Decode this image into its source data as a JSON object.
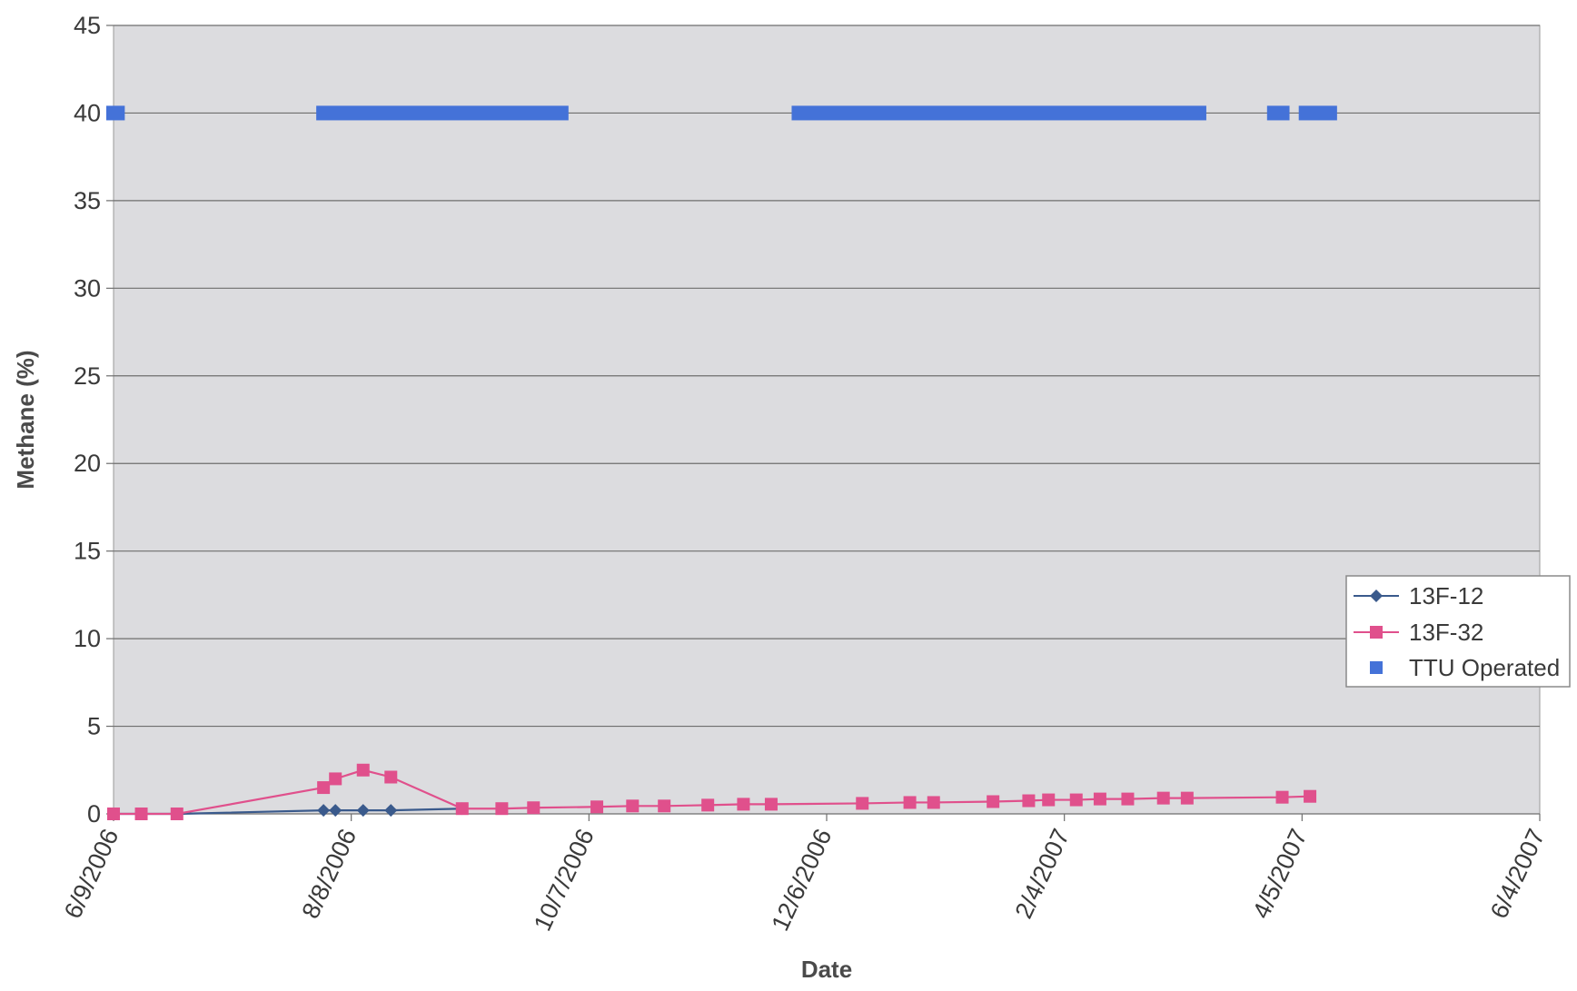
{
  "chart_data": {
    "type": "line",
    "title": "",
    "xlabel": "Date",
    "ylabel": "Methane (%)",
    "ylim": [
      0,
      45
    ],
    "yticks": [
      0,
      5,
      10,
      15,
      20,
      25,
      30,
      35,
      40,
      45
    ],
    "xlim": [
      "2006-06-09",
      "2007-06-04"
    ],
    "xtick_labels": [
      "6/9/2006",
      "8/8/2006",
      "10/7/2006",
      "12/6/2006",
      "2/4/2007",
      "4/5/2007",
      "6/4/2007"
    ],
    "grid": true,
    "legend_position": "right",
    "series": [
      {
        "name": "13F-12",
        "color": "#3a5a8c",
        "marker": "diamond",
        "points": [
          [
            "2006-06-09",
            0
          ],
          [
            "2006-06-16",
            0
          ],
          [
            "2006-06-25",
            0
          ],
          [
            "2006-08-01",
            0.2
          ],
          [
            "2006-08-04",
            0.2
          ],
          [
            "2006-08-11",
            0.2
          ],
          [
            "2006-08-18",
            0.2
          ],
          [
            "2006-09-05",
            0.3
          ]
        ]
      },
      {
        "name": "13F-32",
        "color": "#e0508c",
        "marker": "square",
        "points": [
          [
            "2006-06-09",
            0
          ],
          [
            "2006-06-16",
            0
          ],
          [
            "2006-06-25",
            0
          ],
          [
            "2006-08-01",
            1.5
          ],
          [
            "2006-08-04",
            2.0
          ],
          [
            "2006-08-11",
            2.5
          ],
          [
            "2006-08-18",
            2.1
          ],
          [
            "2006-09-05",
            0.3
          ],
          [
            "2006-09-15",
            0.3
          ],
          [
            "2006-09-23",
            0.35
          ],
          [
            "2006-10-09",
            0.4
          ],
          [
            "2006-10-18",
            0.45
          ],
          [
            "2006-10-26",
            0.45
          ],
          [
            "2006-11-06",
            0.5
          ],
          [
            "2006-11-15",
            0.55
          ],
          [
            "2006-11-22",
            0.55
          ],
          [
            "2006-12-15",
            0.6
          ],
          [
            "2006-12-27",
            0.65
          ],
          [
            "2007-01-02",
            0.65
          ],
          [
            "2007-01-17",
            0.7
          ],
          [
            "2007-01-26",
            0.75
          ],
          [
            "2007-01-31",
            0.8
          ],
          [
            "2007-02-07",
            0.8
          ],
          [
            "2007-02-13",
            0.85
          ],
          [
            "2007-02-20",
            0.85
          ],
          [
            "2007-03-01",
            0.9
          ],
          [
            "2007-03-07",
            0.9
          ],
          [
            "2007-03-31",
            0.95
          ],
          [
            "2007-04-07",
            1.0
          ]
        ]
      },
      {
        "name": "TTU Operated",
        "color": "#4472d8",
        "marker": "square",
        "value": 40,
        "operating_periods": [
          [
            "2006-06-09",
            "2006-06-10"
          ],
          [
            "2006-08-01",
            "2006-09-30"
          ],
          [
            "2006-11-29",
            "2007-03-10"
          ],
          [
            "2007-03-29",
            "2007-03-31"
          ],
          [
            "2007-04-06",
            "2007-04-12"
          ]
        ]
      }
    ]
  }
}
